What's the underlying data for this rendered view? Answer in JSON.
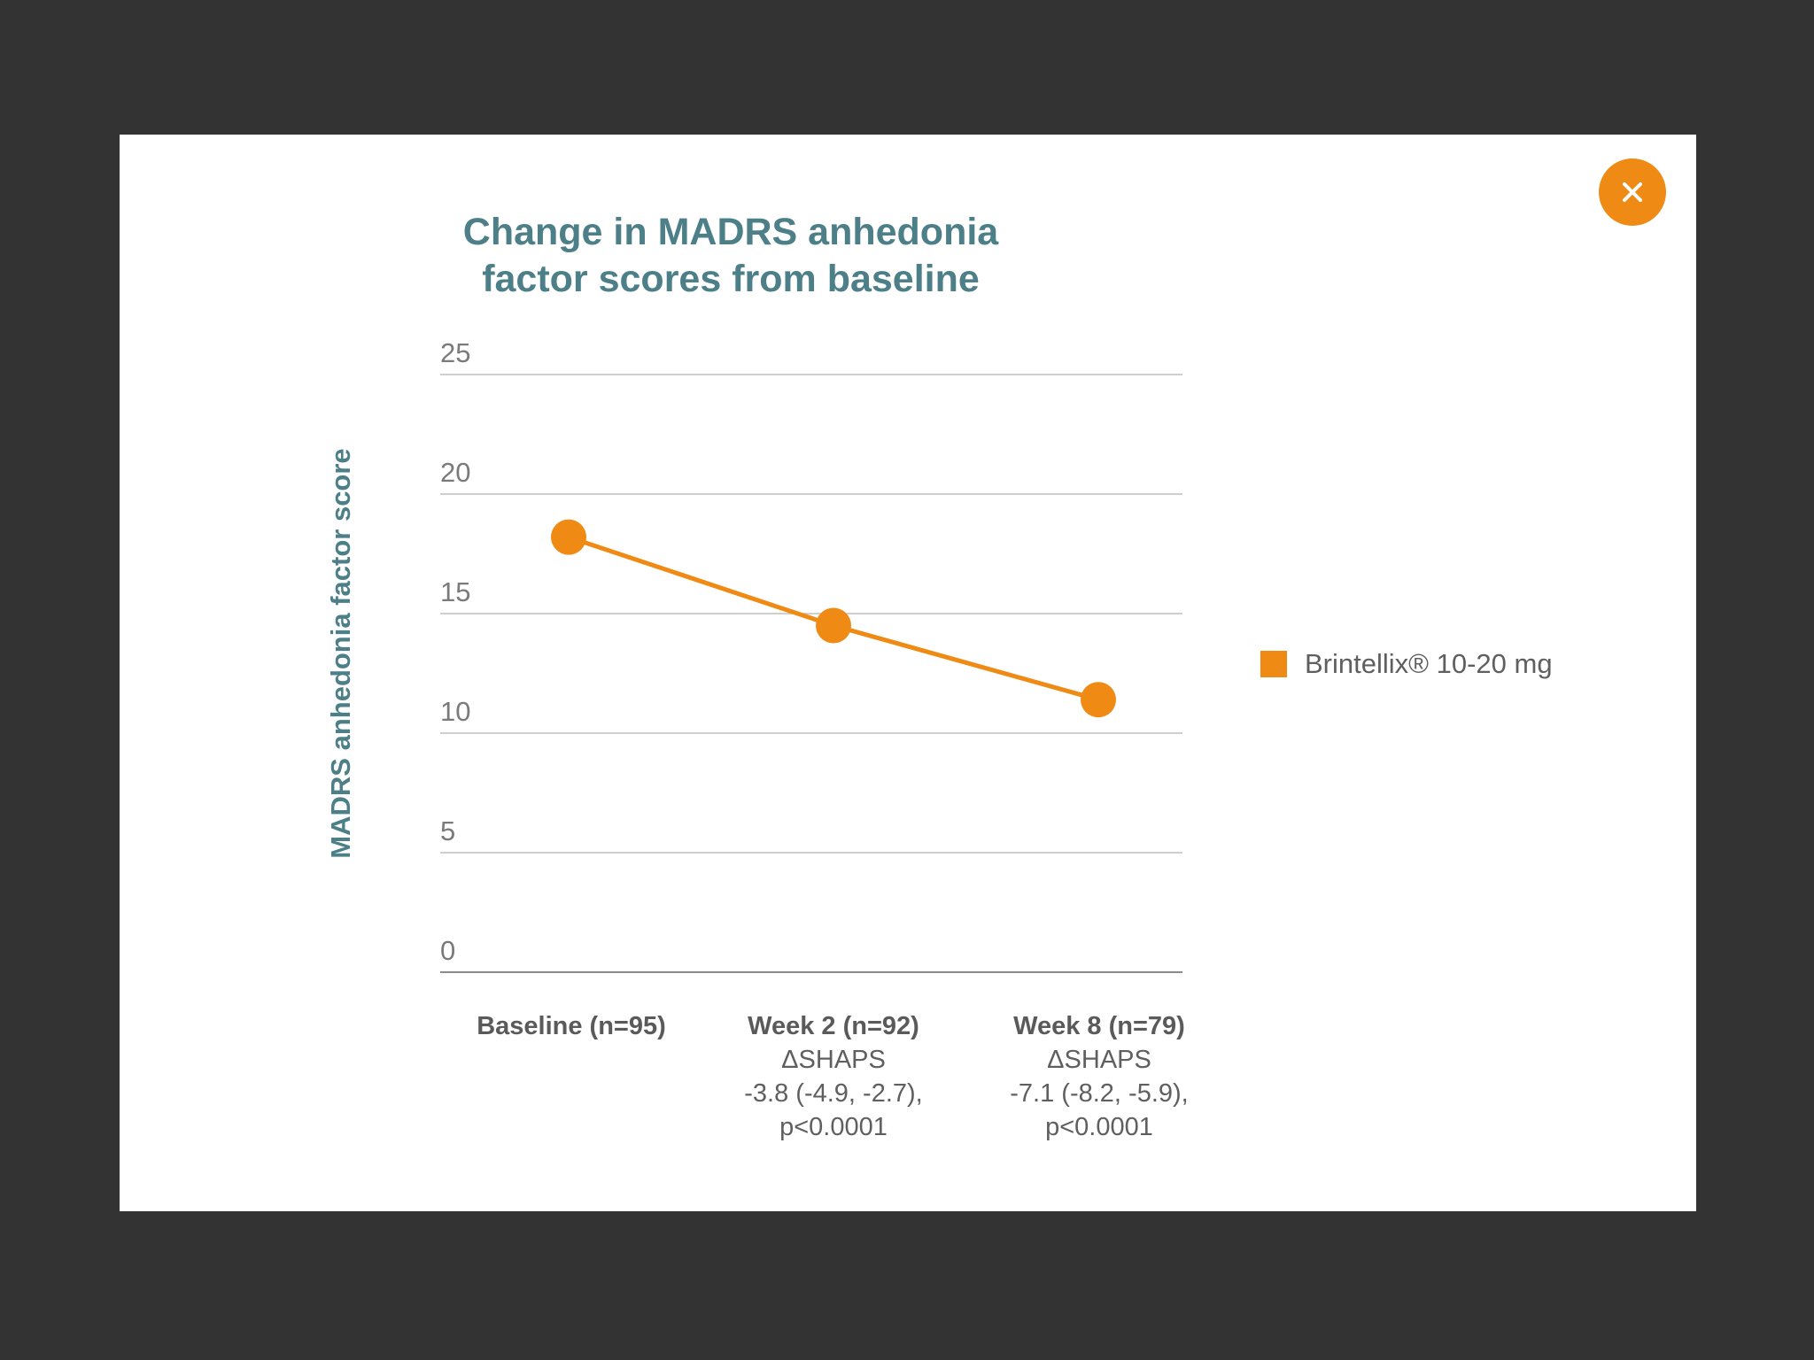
{
  "modal": {
    "close_icon": "close-icon",
    "close_label": "×"
  },
  "colors": {
    "accent": "#ef8b14",
    "title": "#4c7f87",
    "grid": "#bfbfbf",
    "text": "#5f5f5f"
  },
  "chart_data": {
    "type": "line",
    "title_line1": "Change in MADRS anhedonia",
    "title_line2": "factor scores from baseline",
    "xlabel": "",
    "ylabel": "MADRS anhedonia factor score",
    "ylim": [
      0,
      25
    ],
    "yticks": [
      "0",
      "5",
      "10",
      "15",
      "20",
      "25"
    ],
    "grid": true,
    "legend_position": "right",
    "categories": [
      {
        "name": "Baseline (n=95)",
        "delta_label": "",
        "delta_value": "",
        "p_value": ""
      },
      {
        "name": "Week 2 (n=92)",
        "delta_label": "ΔSHAPS",
        "delta_value": "-3.8 (-4.9, -2.7),",
        "p_value": "p<0.0001"
      },
      {
        "name": "Week 8 (n=79)",
        "delta_label": "ΔSHAPS",
        "delta_value": "-7.1 (-8.2, -5.9),",
        "p_value": "p<0.0001"
      }
    ],
    "series": [
      {
        "name": "Brintellix® 10-20 mg",
        "color": "#ef8b14",
        "values": [
          18.2,
          14.5,
          11.4
        ]
      }
    ]
  }
}
